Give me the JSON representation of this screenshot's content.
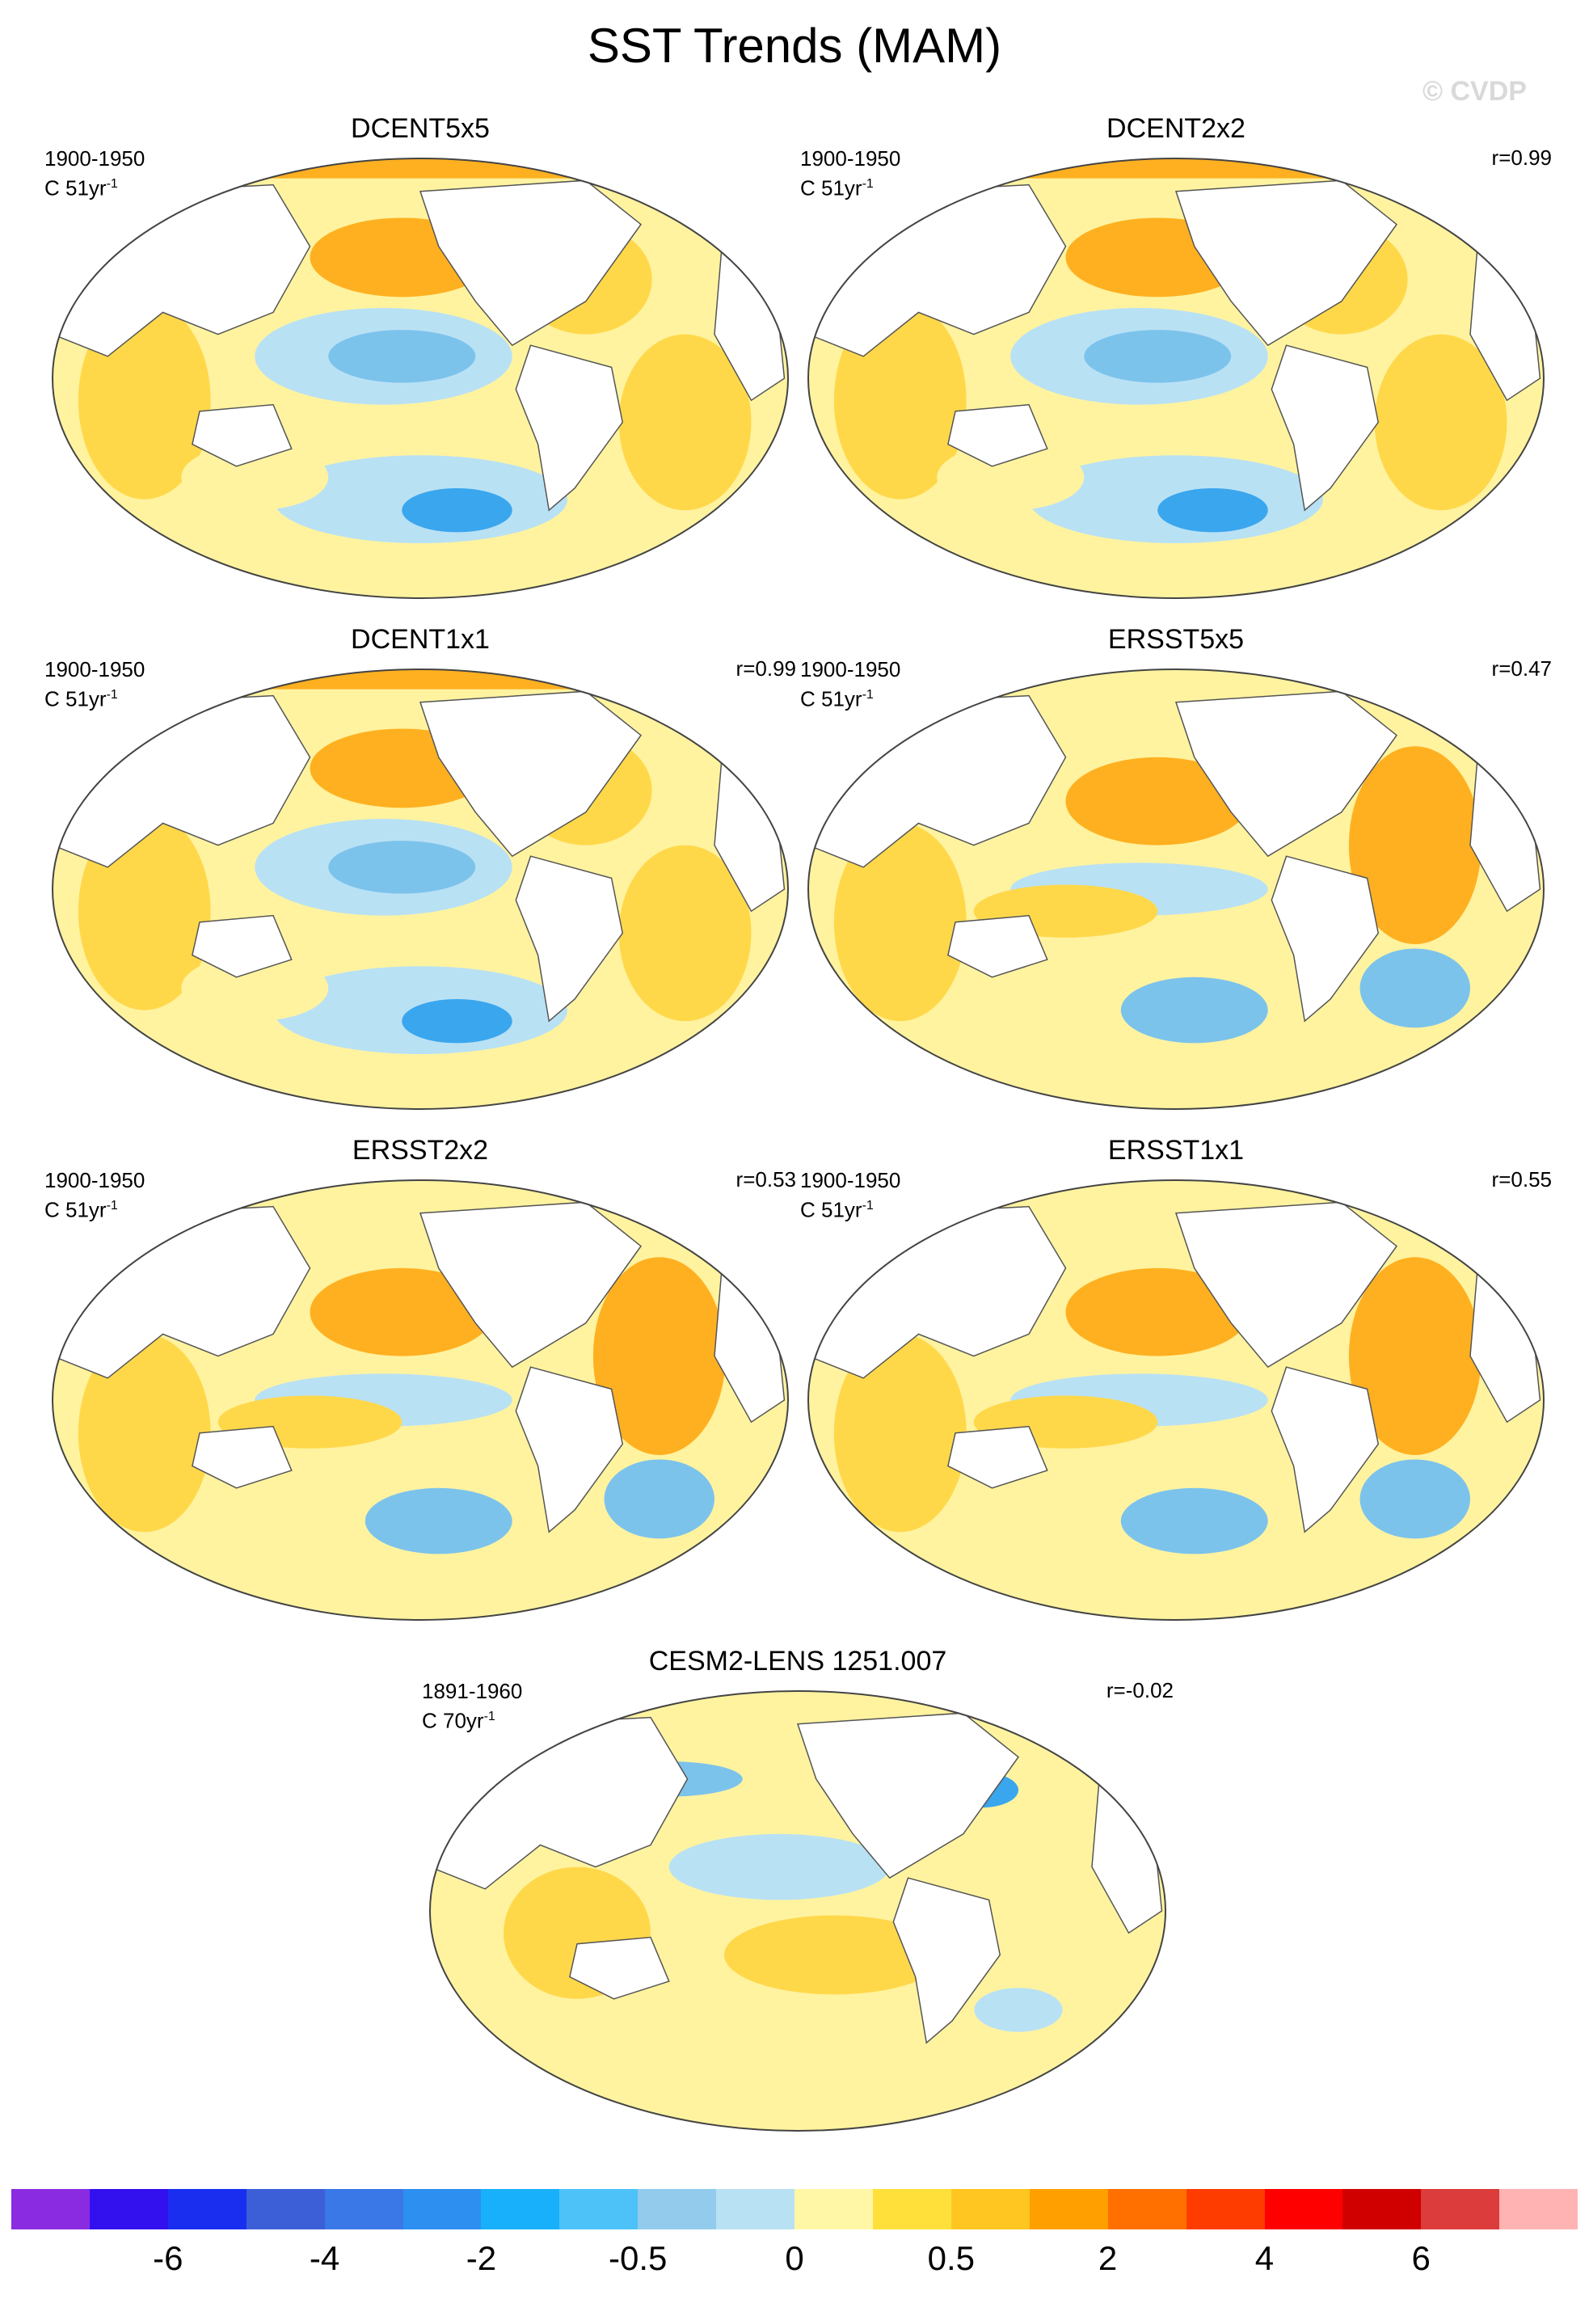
{
  "title": "SST Trends (MAM)",
  "watermark": "© CVDP",
  "panels": [
    {
      "id": "p1",
      "title": "DCENT5x5",
      "period": "1900-1950",
      "units_prefix": "C 51yr",
      "units_exp": "-1",
      "corr": ""
    },
    {
      "id": "p2",
      "title": "DCENT2x2",
      "period": "1900-1950",
      "units_prefix": "C 51yr",
      "units_exp": "-1",
      "corr": "r=0.99"
    },
    {
      "id": "p3",
      "title": "DCENT1x1",
      "period": "1900-1950",
      "units_prefix": "C 51yr",
      "units_exp": "-1",
      "corr": "r=0.99"
    },
    {
      "id": "p4",
      "title": "ERSST5x5",
      "period": "1900-1950",
      "units_prefix": "C 51yr",
      "units_exp": "-1",
      "corr": "r=0.47"
    },
    {
      "id": "p5",
      "title": "ERSST2x2",
      "period": "1900-1950",
      "units_prefix": "C 51yr",
      "units_exp": "-1",
      "corr": "r=0.53"
    },
    {
      "id": "p6",
      "title": "ERSST1x1",
      "period": "1900-1950",
      "units_prefix": "C 51yr",
      "units_exp": "-1",
      "corr": "r=0.55"
    },
    {
      "id": "p7",
      "title": "CESM2-LENS 1251.007",
      "period": "1891-1960",
      "units_prefix": "C 70yr",
      "units_exp": "-1",
      "corr": "r=-0.02"
    }
  ],
  "colorbar": {
    "colors": [
      "#8a2be2",
      "#3311ee",
      "#1a2ef0",
      "#3c5fd8",
      "#3a78e8",
      "#2d8ff0",
      "#19b0fb",
      "#4dc2f8",
      "#92cbeb",
      "#b9e1f4",
      "#fff7a6",
      "#ffe03b",
      "#ffc520",
      "#ffa000",
      "#ff7000",
      "#ff3c00",
      "#ff0000",
      "#d10000",
      "#dc3c3c",
      "#ffb3b3"
    ],
    "labels": [
      "-6",
      "-4",
      "-2",
      "-0.5",
      "0",
      "0.5",
      "2",
      "4",
      "6"
    ]
  },
  "colors": {
    "land": "#ffffff",
    "coast": "#555555",
    "warm_light": "#fff3a0",
    "warm": "#ffd84a",
    "warm_strong": "#ffb020",
    "cool_light": "#b9e1f4",
    "cool": "#7cc3ec",
    "cool_strong": "#3aa6ee"
  }
}
